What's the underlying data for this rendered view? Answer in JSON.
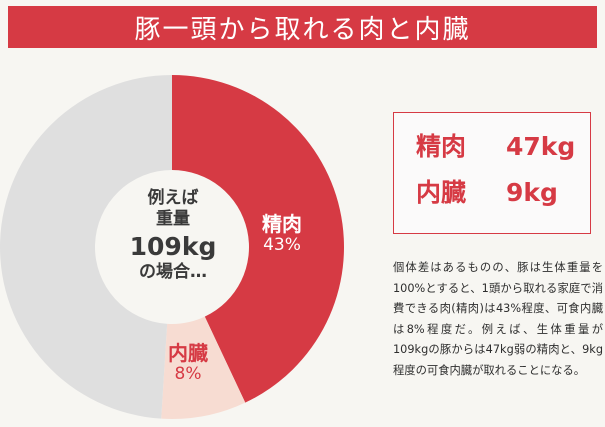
{
  "title": "豚一頭から取れる肉と内臓",
  "chart_data": {
    "type": "pie",
    "style": "donut",
    "title": "豚一頭から取れる肉と内臓",
    "slices": [
      {
        "label": "精肉",
        "value": 43,
        "display": "43%",
        "color": "#d63a44"
      },
      {
        "label": "内臓",
        "value": 8,
        "display": "8%",
        "color": "#f7dcd2"
      },
      {
        "label": "",
        "value": 49,
        "display": "",
        "color": "#dfdfdf"
      }
    ]
  },
  "center_text": {
    "line1": "例えば",
    "line2": "重量",
    "line3": "109kg",
    "line4": "の場合…"
  },
  "summary": [
    {
      "label": "精肉",
      "value": "47kg"
    },
    {
      "label": "内臓",
      "value": "9kg"
    }
  ],
  "description": "個体差はあるものの、豚は生体重量を100%とすると、1頭から取れる家庭で消費できる肉(精肉)は43%程度、可食内臓は8%程度だ。例えば、生体重量が109kgの豚からは47kg弱の精肉と、9kg程度の可食内臓が取れることになる。"
}
